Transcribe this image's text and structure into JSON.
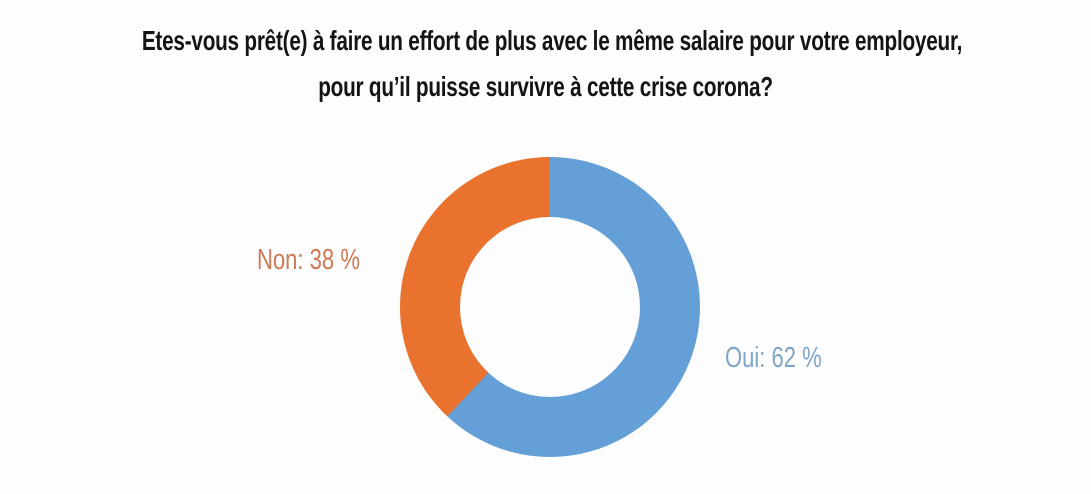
{
  "chart_data": {
    "type": "pie",
    "variant": "donut",
    "title_lines": [
      "Etes-vous prêt(e) à faire un effort de plus avec le même salaire pour votre employeur,",
      "pour qu’il puisse survivre à cette crise corona?"
    ],
    "categories": [
      "Oui",
      "Non"
    ],
    "values": [
      62,
      38
    ],
    "unit": "%",
    "labels": [
      {
        "category": "Oui",
        "value": 62,
        "text": "Oui: 62 %",
        "color": "#7FA5C6"
      },
      {
        "category": "Non",
        "value": 38,
        "text": "Non: 38 %",
        "color": "#CE7A55"
      }
    ],
    "slice_colors": [
      "#64A0D7",
      "#E8722E"
    ],
    "start_angle_deg": 0,
    "direction": "clockwise",
    "donut_hole_ratio": 0.6,
    "legend": "none",
    "background_color": "#FDFDFD",
    "title_color": "#141414"
  }
}
